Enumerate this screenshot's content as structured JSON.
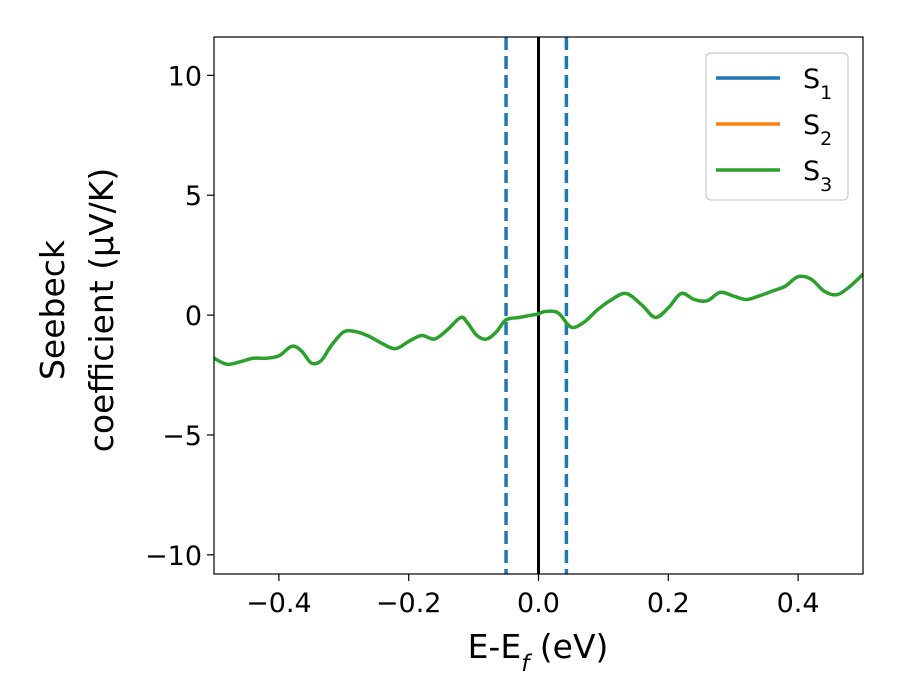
{
  "chart_data": {
    "type": "line",
    "xlabel": "E-E",
    "xlabel_sub": "f",
    "xlabel_unit": " (eV)",
    "ylabel_line1": "Seebeck",
    "ylabel_line2": "coefficient  (μV/K)",
    "xlim": [
      -0.5,
      0.5
    ],
    "ylim": [
      -10.8,
      11.6
    ],
    "xticks": [
      -0.4,
      -0.2,
      0.0,
      0.2,
      0.4
    ],
    "xtick_labels": [
      "−0.4",
      "−0.2",
      "0.0",
      "0.2",
      "0.4"
    ],
    "yticks": [
      -10,
      -5,
      0,
      5,
      10
    ],
    "ytick_labels": [
      "−10",
      "−5",
      "0",
      "5",
      "10"
    ],
    "grid": false,
    "legend_position": "top-right",
    "vlines": [
      {
        "x": -0.05,
        "style": "dashed",
        "color": "#1f77b4"
      },
      {
        "x": 0.043,
        "style": "dashed",
        "color": "#1f77b4"
      },
      {
        "x": 0.0,
        "style": "solid",
        "color": "#000000"
      }
    ],
    "series": [
      {
        "name": "S",
        "sub": "1",
        "color": "#1f77b4",
        "x": [],
        "y": []
      },
      {
        "name": "S",
        "sub": "2",
        "color": "#ff7f0e",
        "x": [],
        "y": []
      },
      {
        "name": "S",
        "sub": "3",
        "color": "#2ca02c",
        "x": [
          -0.5,
          -0.48,
          -0.46,
          -0.44,
          -0.42,
          -0.4,
          -0.38,
          -0.365,
          -0.35,
          -0.335,
          -0.32,
          -0.3,
          -0.28,
          -0.26,
          -0.24,
          -0.22,
          -0.2,
          -0.18,
          -0.16,
          -0.14,
          -0.12,
          -0.11,
          -0.095,
          -0.08,
          -0.065,
          -0.05,
          -0.03,
          -0.01,
          0.0,
          0.01,
          0.03,
          0.05,
          0.07,
          0.09,
          0.11,
          0.135,
          0.16,
          0.18,
          0.2,
          0.22,
          0.24,
          0.26,
          0.28,
          0.3,
          0.32,
          0.34,
          0.36,
          0.38,
          0.4,
          0.42,
          0.44,
          0.46,
          0.48,
          0.5
        ],
        "y": [
          -1.8,
          -2.05,
          -1.95,
          -1.8,
          -1.8,
          -1.7,
          -1.3,
          -1.5,
          -2.0,
          -1.9,
          -1.3,
          -0.7,
          -0.7,
          -0.9,
          -1.2,
          -1.4,
          -1.1,
          -0.85,
          -1.0,
          -0.6,
          -0.1,
          -0.3,
          -0.85,
          -1.0,
          -0.7,
          -0.2,
          -0.1,
          0.0,
          0.05,
          0.15,
          0.1,
          -0.5,
          -0.3,
          0.2,
          0.6,
          0.9,
          0.4,
          -0.1,
          0.3,
          0.9,
          0.65,
          0.6,
          0.95,
          0.8,
          0.65,
          0.8,
          1.0,
          1.2,
          1.6,
          1.5,
          1.0,
          0.85,
          1.2,
          1.7
        ]
      }
    ]
  }
}
